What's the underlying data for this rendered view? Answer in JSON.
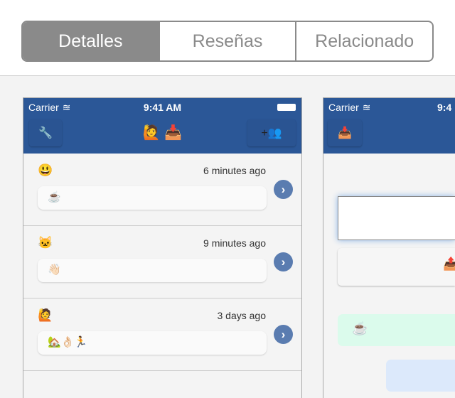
{
  "tabs": [
    {
      "label": "Detalles",
      "selected": true
    },
    {
      "label": "Reseñas",
      "selected": false
    },
    {
      "label": "Relacionado",
      "selected": false
    }
  ],
  "status": {
    "carrier": "Carrier",
    "time": "9:41 AM",
    "time_partial": "9:4"
  },
  "screen1": {
    "nav": {
      "left_icon": "wrench-icon",
      "title_emoji": "🙋 📥",
      "right_label": "+👥"
    },
    "rows": [
      {
        "avatar": "😃",
        "time": "6 minutes ago",
        "message": "☕"
      },
      {
        "avatar": "🐱",
        "time": "9 minutes ago",
        "message": "👋🏻"
      },
      {
        "avatar": "🙋",
        "time": "3 days ago",
        "message": "🏡👌🏻🏃"
      }
    ]
  },
  "screen2": {
    "nav": {
      "left_icon": "📥"
    },
    "send_icon": "📤",
    "green_message": "☕"
  },
  "colors": {
    "nav": "#2b5797",
    "segment": "#8a8a8a",
    "chevron": "#5a7cb0"
  }
}
